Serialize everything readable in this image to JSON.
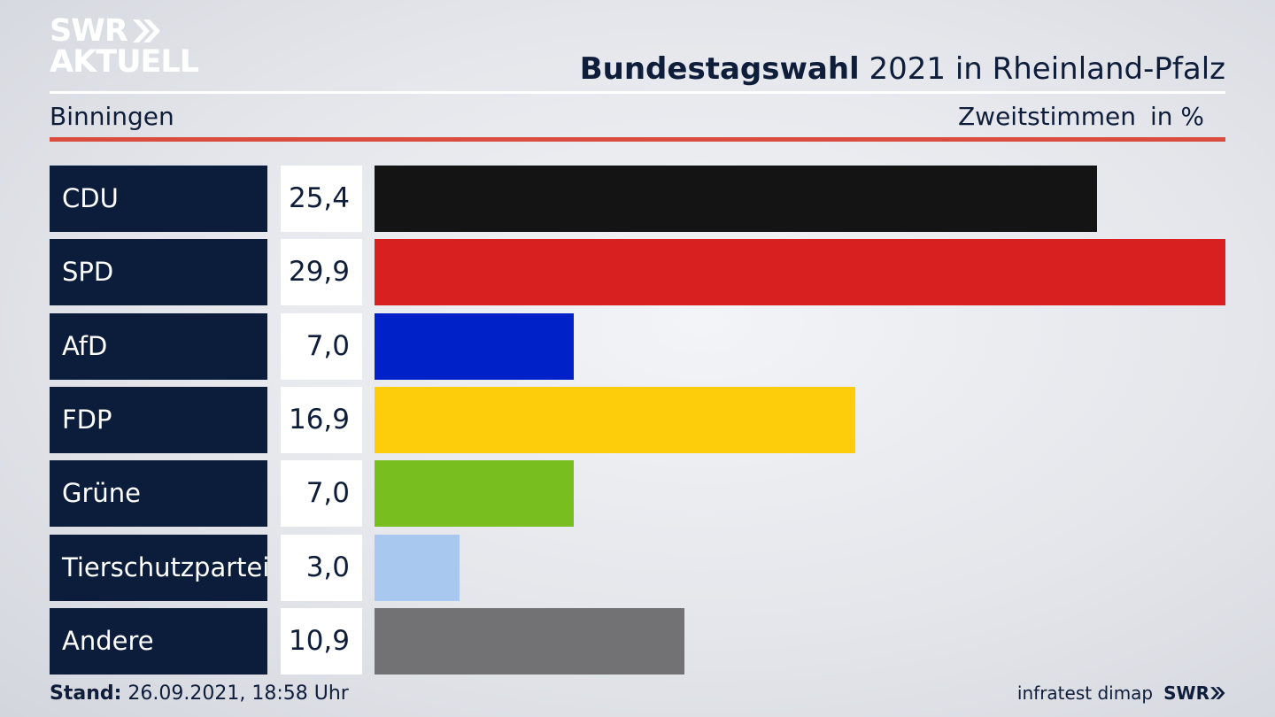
{
  "logo": {
    "line1": "SWR",
    "line2": "AKTUELL"
  },
  "header": {
    "title_bold": "Bundestagswahl",
    "title_rest": " 2021 in Rheinland-Pfalz",
    "region": "Binningen",
    "measure": "Zweitstimmen",
    "unit": "in %"
  },
  "chart_data": {
    "type": "bar",
    "orientation": "horizontal",
    "categories": [
      "CDU",
      "SPD",
      "AfD",
      "FDP",
      "Grüne",
      "Tierschutzpartei",
      "Andere"
    ],
    "values": [
      25.4,
      29.9,
      7.0,
      16.9,
      7.0,
      3.0,
      10.9
    ],
    "value_labels": [
      "25,4",
      "29,9",
      "7,0",
      "16,9",
      "7,0",
      "3,0",
      "10,9"
    ],
    "colors": [
      "#141414",
      "#d82020",
      "#0020c8",
      "#fdcc0a",
      "#78be1e",
      "#a8c8f0",
      "#727274"
    ],
    "xlim": [
      0,
      29.9
    ]
  },
  "footer": {
    "stand_label": "Stand:",
    "stand_value": " 26.09.2021, 18:58 Uhr",
    "source": "infratest dimap",
    "brand": "SWR"
  }
}
